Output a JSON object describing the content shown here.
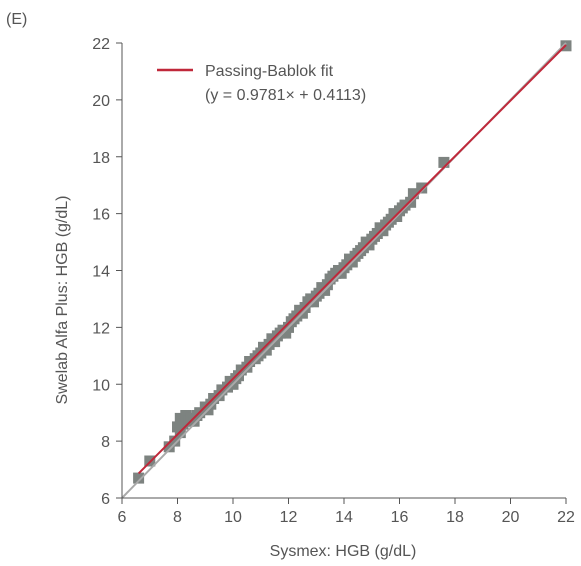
{
  "panel_label": "(E)",
  "colors": {
    "fit_line": "#c0283a",
    "identity_line": "#a9a9a9",
    "points": "#7d8380",
    "axis": "#555555",
    "text": "#555555"
  },
  "chart_data": {
    "type": "scatter",
    "xlabel": "Sysmex: HGB (g/dL)",
    "ylabel": "Swelab Alfa Plus: HGB (g/dL)",
    "xlim": [
      6,
      22
    ],
    "ylim": [
      6,
      22
    ],
    "xticks": [
      6,
      8,
      10,
      12,
      14,
      16,
      18,
      20,
      22
    ],
    "yticks": [
      6,
      8,
      10,
      12,
      14,
      16,
      18,
      20,
      22
    ],
    "grid": false,
    "legend": {
      "position": "top-left",
      "label": "Passing-Bablok fit",
      "equation": "(y = 0.9781× + 0.4113)"
    },
    "fit": {
      "slope": 0.9781,
      "intercept": 0.4113
    },
    "identity_line": {
      "slope": 1,
      "intercept": 0
    },
    "series": [
      {
        "name": "",
        "x": [
          6.6,
          7.0,
          7.7,
          7.9,
          8.0,
          8.1,
          8.1,
          8.2,
          8.3,
          8.4,
          8.5,
          8.6,
          8.7,
          8.8,
          9.0,
          9.1,
          9.2,
          9.3,
          9.5,
          9.6,
          9.8,
          9.9,
          10.0,
          10.1,
          10.2,
          10.3,
          10.5,
          10.6,
          10.8,
          10.9,
          11.0,
          11.1,
          11.2,
          11.3,
          11.4,
          11.5,
          11.6,
          11.7,
          11.8,
          11.9,
          12.0,
          12.1,
          12.2,
          12.3,
          12.4,
          12.5,
          12.6,
          12.7,
          12.8,
          12.9,
          13.0,
          13.1,
          13.2,
          13.3,
          13.4,
          13.5,
          13.6,
          13.7,
          13.8,
          13.9,
          14.0,
          14.1,
          14.2,
          14.3,
          14.4,
          14.5,
          14.6,
          14.7,
          14.8,
          14.9,
          15.0,
          15.1,
          15.2,
          15.3,
          15.4,
          15.5,
          15.6,
          15.7,
          15.8,
          15.9,
          16.0,
          16.1,
          16.2,
          16.4,
          16.5,
          16.8,
          17.6,
          22.0
        ],
        "y": [
          6.7,
          7.3,
          7.8,
          8.0,
          8.5,
          8.8,
          8.3,
          8.6,
          8.9,
          8.7,
          8.8,
          8.7,
          8.9,
          9.0,
          9.2,
          9.1,
          9.3,
          9.5,
          9.6,
          9.8,
          9.9,
          10.1,
          10.0,
          10.2,
          10.3,
          10.5,
          10.6,
          10.8,
          10.9,
          11.0,
          11.1,
          11.3,
          11.2,
          11.4,
          11.6,
          11.5,
          11.7,
          11.8,
          11.9,
          11.8,
          12.0,
          12.2,
          12.3,
          12.4,
          12.6,
          12.5,
          12.7,
          12.9,
          13.0,
          12.9,
          13.1,
          13.2,
          13.4,
          13.3,
          13.5,
          13.7,
          13.8,
          13.9,
          14.0,
          13.9,
          14.1,
          14.2,
          14.4,
          14.3,
          14.5,
          14.6,
          14.7,
          14.8,
          15.0,
          14.9,
          15.1,
          15.2,
          15.3,
          15.5,
          15.4,
          15.6,
          15.7,
          15.8,
          16.0,
          15.9,
          16.1,
          16.2,
          16.3,
          16.4,
          16.7,
          16.9,
          17.8,
          21.9
        ]
      }
    ]
  }
}
